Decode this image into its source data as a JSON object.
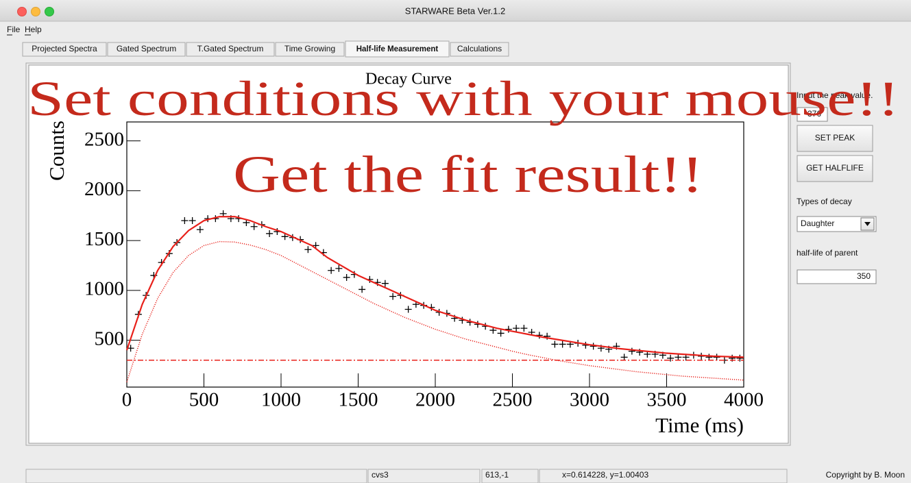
{
  "window": {
    "title": "STARWARE Beta Ver.1.2"
  },
  "menu": [
    "File",
    "Help"
  ],
  "tabs": [
    "Projected Spectra",
    "Gated Spectrum",
    "T.Gated Spectrum",
    "Time Growing",
    "Half-life Measurement",
    "Calculations"
  ],
  "active_tab": 4,
  "side_panel": {
    "peak_label": "Input the peak value.",
    "peak_value": "376",
    "set_peak": "SET PEAK",
    "get_halflife": "GET HALFLIFE",
    "decay_label": "Types of decay",
    "decay_type": "Daughter",
    "parent_label": "half-life of parent",
    "parent_value": "350"
  },
  "status_bar": [
    "cvs3",
    "613,-1",
    "x=0.614228, y=1.00403"
  ],
  "copyright": "Copyright by B. Moon",
  "annotations": [
    "Set conditions with your mouse!!",
    "Get the fit result!!"
  ],
  "chart_data": {
    "type": "scatter",
    "title": "Decay Curve",
    "x_label": "Time (ms)",
    "y_label": "Counts",
    "x": [
      25,
      75,
      125,
      175,
      225,
      275,
      325,
      375,
      425,
      475,
      525,
      575,
      625,
      675,
      725,
      775,
      825,
      875,
      925,
      975,
      1025,
      1075,
      1125,
      1175,
      1225,
      1275,
      1325,
      1375,
      1425,
      1475,
      1525,
      1575,
      1625,
      1675,
      1725,
      1775,
      1825,
      1875,
      1925,
      1975,
      2025,
      2075,
      2125,
      2175,
      2225,
      2275,
      2325,
      2375,
      2425,
      2475,
      2525,
      2575,
      2625,
      2675,
      2725,
      2775,
      2825,
      2875,
      2925,
      2975,
      3025,
      3075,
      3125,
      3175,
      3225,
      3275,
      3325,
      3375,
      3425,
      3475,
      3525,
      3575,
      3625,
      3675,
      3725,
      3775,
      3825,
      3875,
      3925,
      3975
    ],
    "series": [
      {
        "color": "#000000",
        "linestyle": "none",
        "values": [
          420,
          760,
          950,
          1150,
          1280,
          1370,
          1480,
          1700,
          1700,
          1610,
          1720,
          1720,
          1770,
          1720,
          1720,
          1680,
          1640,
          1660,
          1570,
          1590,
          1540,
          1530,
          1510,
          1410,
          1450,
          1380,
          1200,
          1220,
          1130,
          1160,
          1010,
          1110,
          1080,
          1070,
          940,
          950,
          810,
          860,
          850,
          830,
          780,
          770,
          720,
          700,
          680,
          660,
          640,
          600,
          570,
          610,
          620,
          620,
          580,
          550,
          540,
          460,
          460,
          460,
          470,
          450,
          440,
          420,
          410,
          440,
          330,
          390,
          380,
          360,
          360,
          350,
          320,
          330,
          330,
          350,
          340,
          330,
          330,
          300,
          320,
          320
        ]
      },
      {
        "color": "#e8201a",
        "linestyle": "solid",
        "x": [
          0,
          100,
          200,
          300,
          400,
          500,
          600,
          700,
          800,
          900,
          1000,
          1100,
          1200,
          1300,
          1400,
          1500,
          1600,
          1700,
          1800,
          1900,
          2000,
          2100,
          2200,
          2300,
          2400,
          2500,
          2600,
          2700,
          2800,
          2900,
          3000,
          3100,
          3200,
          3300,
          3400,
          3500,
          3600,
          3700,
          3800,
          3900,
          4000
        ],
        "values": [
          400,
          860,
          1200,
          1440,
          1600,
          1700,
          1740,
          1740,
          1700,
          1640,
          1590,
          1520,
          1450,
          1330,
          1240,
          1150,
          1080,
          1010,
          940,
          870,
          800,
          750,
          700,
          660,
          620,
          590,
          560,
          530,
          505,
          480,
          455,
          435,
          415,
          400,
          385,
          370,
          360,
          350,
          340,
          335,
          330
        ]
      },
      {
        "color": "#e8201a",
        "linestyle": "dotted",
        "x": [
          0,
          100,
          200,
          300,
          400,
          500,
          600,
          700,
          800,
          900,
          1000,
          1100,
          1200,
          1300,
          1400,
          1500,
          1600,
          1700,
          1800,
          1900,
          2000,
          2100,
          2200,
          2300,
          2400,
          2500,
          2600,
          2700,
          2800,
          2900,
          3000,
          3100,
          3200,
          3300,
          3400,
          3500,
          3600,
          3700,
          3800,
          3900,
          4000
        ],
        "values": [
          80,
          560,
          920,
          1180,
          1350,
          1450,
          1490,
          1485,
          1455,
          1410,
          1350,
          1270,
          1190,
          1110,
          1030,
          950,
          870,
          800,
          730,
          670,
          610,
          560,
          510,
          470,
          430,
          390,
          355,
          325,
          295,
          270,
          245,
          225,
          205,
          185,
          170,
          155,
          140,
          130,
          120,
          110,
          100
        ]
      },
      {
        "color": "#e8201a",
        "linestyle": "dashdot",
        "x": [
          0,
          4000
        ],
        "values": [
          300,
          300
        ]
      }
    ],
    "xlim": [
      0,
      4000
    ],
    "ylim": [
      30,
      2690
    ],
    "xticks": [
      0,
      500,
      1000,
      1500,
      2000,
      2500,
      3000,
      3500,
      4000
    ],
    "yticks": [
      500,
      1000,
      1500,
      2000,
      2500
    ]
  }
}
